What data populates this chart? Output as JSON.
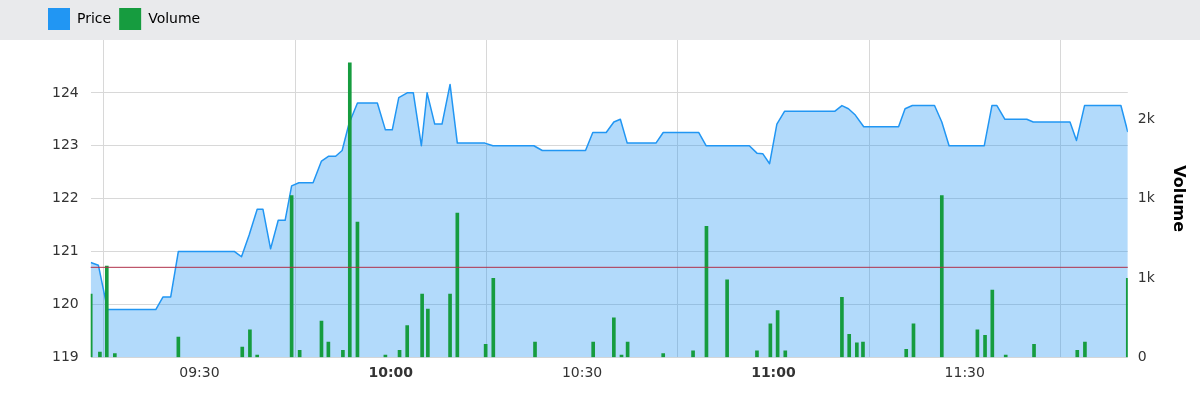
{
  "chart_data": {
    "type": "area",
    "y2label": "Volume",
    "legend": "top left",
    "grid": true,
    "xlim": [
      9.216,
      11.926
    ],
    "xticks": [
      {
        "value": 9.5,
        "label": "09:30"
      },
      {
        "value": 10,
        "label": "10:00"
      },
      {
        "value": 10.5,
        "label": "10:30"
      },
      {
        "value": 11,
        "label": "11:00"
      },
      {
        "value": 11.5,
        "label": "11:30"
      }
    ],
    "ylim": [
      119,
      125
    ],
    "yticks": [
      119,
      120,
      121,
      122,
      123,
      124
    ],
    "y2lim": [
      0,
      2000
    ],
    "y2ticks": [
      0,
      {
        "value": 500,
        "label": "1k"
      },
      {
        "value": 1000,
        "label": "1k"
      },
      {
        "value": 1500,
        "label": "2k"
      }
    ],
    "ref_lines": [
      {
        "axis": "y",
        "value": 120.7,
        "color": "#b0304a"
      }
    ],
    "series": [
      {
        "name": "Price",
        "color": "#2196f3",
        "x": [
          9.216,
          9.236,
          9.26,
          9.386,
          9.405,
          9.425,
          9.445,
          9.591,
          9.61,
          9.63,
          9.651,
          9.666,
          9.686,
          9.706,
          9.724,
          9.741,
          9.76,
          9.797,
          9.819,
          9.837,
          9.856,
          9.873,
          9.891,
          9.913,
          9.965,
          9.986,
          10.004,
          10.021,
          10.043,
          10.059,
          10.08,
          10.095,
          10.115,
          10.134,
          10.155,
          10.174,
          10.246,
          10.267,
          10.374,
          10.396,
          10.509,
          10.528,
          10.563,
          10.583,
          10.6,
          10.618,
          10.693,
          10.712,
          10.805,
          10.824,
          10.937,
          10.957,
          10.972,
          10.99,
          11.009,
          11.029,
          11.074,
          11.16,
          11.179,
          11.196,
          11.214,
          11.236,
          11.327,
          11.344,
          11.363,
          11.421,
          11.44,
          11.459,
          11.551,
          11.571,
          11.584,
          11.605,
          11.662,
          11.679,
          11.775,
          11.792,
          11.813,
          11.908,
          11.926
        ],
        "values": [
          120.79,
          120.74,
          119.9,
          119.9,
          120.14,
          120.14,
          121.0,
          121.0,
          120.9,
          121.31,
          121.8,
          121.8,
          121.05,
          121.59,
          121.59,
          122.24,
          122.3,
          122.3,
          122.71,
          122.8,
          122.8,
          122.91,
          123.42,
          123.81,
          123.81,
          123.3,
          123.3,
          123.91,
          124.0,
          124.0,
          123.0,
          124.0,
          123.41,
          123.41,
          124.16,
          123.05,
          123.05,
          123.0,
          123.0,
          122.91,
          122.91,
          123.25,
          123.25,
          123.45,
          123.5,
          123.05,
          123.05,
          123.25,
          123.25,
          123.0,
          123.0,
          122.86,
          122.85,
          122.66,
          123.41,
          123.65,
          123.65,
          123.65,
          123.76,
          123.7,
          123.58,
          123.36,
          123.36,
          123.7,
          123.76,
          123.76,
          123.45,
          123.0,
          123.0,
          123.76,
          123.76,
          123.5,
          123.5,
          123.45,
          123.45,
          123.1,
          123.76,
          123.76,
          123.26
        ]
      },
      {
        "name": "Volume",
        "type": "bar",
        "axis": "y2",
        "color": "#169c3f",
        "x": [
          9.216,
          9.24,
          9.258,
          9.279,
          9.445,
          9.612,
          9.632,
          9.651,
          9.741,
          9.762,
          9.819,
          9.837,
          9.875,
          9.893,
          9.913,
          9.986,
          10.023,
          10.043,
          10.082,
          10.097,
          10.155,
          10.174,
          10.248,
          10.268,
          10.377,
          10.529,
          10.583,
          10.603,
          10.619,
          10.712,
          10.79,
          10.825,
          10.879,
          10.957,
          10.992,
          11.011,
          11.031,
          11.179,
          11.198,
          11.218,
          11.234,
          11.347,
          11.366,
          11.44,
          11.533,
          11.553,
          11.572,
          11.607,
          11.681,
          11.794,
          11.814,
          11.926
        ],
        "values": [
          398,
          33,
          575,
          23,
          127,
          64,
          173,
          13,
          1019,
          44,
          227,
          96,
          44,
          1856,
          852,
          13,
          44,
          200,
          398,
          304,
          398,
          908,
          81,
          498,
          96,
          96,
          248,
          13,
          96,
          23,
          40,
          825,
          488,
          40,
          210,
          294,
          40,
          377,
          144,
          90,
          96,
          50,
          210,
          1019,
          173,
          138,
          423,
          13,
          81,
          44,
          96,
          498
        ]
      }
    ]
  }
}
